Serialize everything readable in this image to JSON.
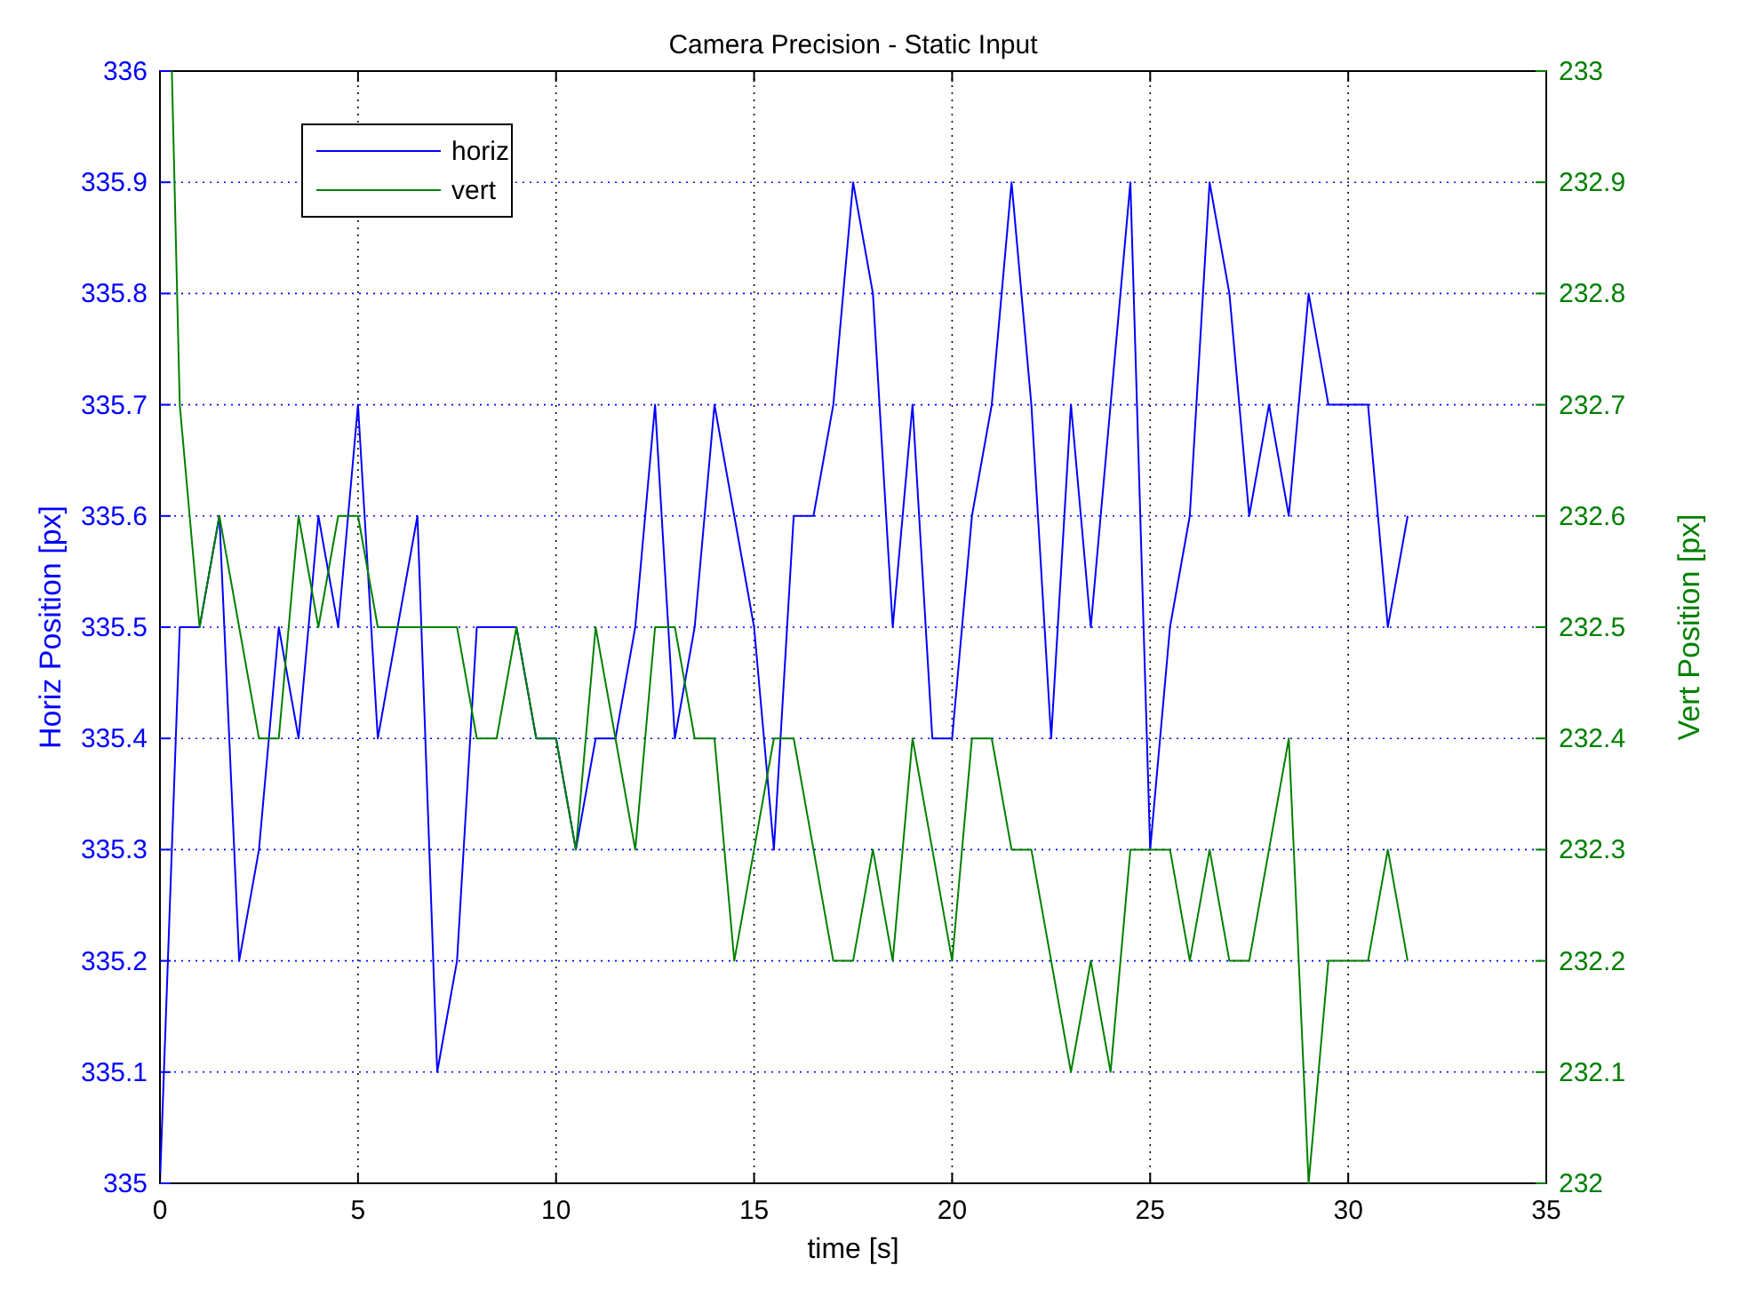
{
  "chart_data": {
    "type": "line",
    "title": "Camera Precision - Static Input",
    "xlabel": "time [s]",
    "ylabel": "Horiz Position [px]",
    "y2label": "Vert Position [px]",
    "x": [
      0,
      0.5,
      1,
      1.5,
      2,
      2.5,
      3,
      3.5,
      4,
      4.5,
      5,
      5.5,
      6,
      6.5,
      7,
      7.5,
      8,
      8.5,
      9,
      9.5,
      10,
      10.5,
      11,
      11.5,
      12,
      12.5,
      13,
      13.5,
      14,
      14.5,
      15,
      15.5,
      16,
      16.5,
      17,
      17.5,
      18,
      18.5,
      19,
      19.5,
      20,
      20.5,
      21,
      21.5,
      22,
      22.5,
      23,
      23.5,
      24,
      24.5,
      25,
      25.5,
      26,
      26.5,
      27,
      27.5,
      28,
      28.5,
      29,
      29.5,
      30,
      30.5,
      31,
      31.5
    ],
    "series": [
      {
        "name": "horiz",
        "color": "#0000ff",
        "values": [
          335.0,
          335.5,
          335.5,
          335.6,
          335.2,
          335.3,
          335.5,
          335.4,
          335.6,
          335.5,
          335.7,
          335.4,
          335.5,
          335.6,
          335.1,
          335.2,
          335.5,
          335.5,
          335.5,
          335.4,
          335.4,
          335.3,
          335.4,
          335.4,
          335.5,
          335.7,
          335.4,
          335.5,
          335.7,
          335.6,
          335.5,
          335.3,
          335.6,
          335.6,
          335.7,
          335.9,
          335.8,
          335.5,
          335.7,
          335.4,
          335.4,
          335.6,
          335.7,
          335.9,
          335.7,
          335.4,
          335.7,
          335.5,
          335.7,
          335.9,
          335.3,
          335.5,
          335.6,
          335.9,
          335.8,
          335.6,
          335.7,
          335.6,
          335.8,
          335.7,
          335.7,
          335.7,
          335.5,
          335.6
        ]
      },
      {
        "name": "vert",
        "color": "#008000",
        "axis": "y2",
        "x": [
          0.3,
          0.5,
          1,
          1.5,
          2,
          2.5,
          3,
          3.5,
          4,
          4.5,
          5,
          5.5,
          6,
          6.5,
          7,
          7.5,
          8,
          8.5,
          9,
          9.5,
          10,
          10.5,
          11,
          11.5,
          12,
          12.5,
          13,
          13.5,
          14,
          14.5,
          15,
          15.5,
          16,
          16.5,
          17,
          17.5,
          18,
          18.5,
          19,
          19.5,
          20,
          20.5,
          21,
          21.5,
          22,
          22.5,
          23,
          23.5,
          24,
          24.5,
          25,
          25.5,
          26,
          26.5,
          27,
          27.5,
          28,
          28.5,
          29,
          29.5,
          30,
          30.5,
          31,
          31.5
        ],
        "values": [
          233.0,
          232.7,
          232.5,
          232.6,
          232.5,
          232.4,
          232.4,
          232.6,
          232.5,
          232.6,
          232.6,
          232.5,
          232.5,
          232.5,
          232.5,
          232.5,
          232.4,
          232.4,
          232.5,
          232.4,
          232.4,
          232.3,
          232.5,
          232.4,
          232.3,
          232.5,
          232.5,
          232.4,
          232.4,
          232.2,
          232.3,
          232.4,
          232.4,
          232.3,
          232.2,
          232.2,
          232.3,
          232.2,
          232.4,
          232.3,
          232.2,
          232.4,
          232.4,
          232.3,
          232.3,
          232.2,
          232.1,
          232.2,
          232.1,
          232.3,
          232.3,
          232.3,
          232.2,
          232.3,
          232.2,
          232.2,
          232.3,
          232.4,
          232.0,
          232.2,
          232.2,
          232.2,
          232.3,
          232.2
        ]
      }
    ],
    "xlim": [
      0,
      35
    ],
    "xticks": [
      0,
      5,
      10,
      15,
      20,
      25,
      30,
      35
    ],
    "ylim": [
      335,
      336
    ],
    "yticks": [
      335,
      335.1,
      335.2,
      335.3,
      335.4,
      335.5,
      335.6,
      335.7,
      335.8,
      335.9,
      336
    ],
    "y2lim": [
      232,
      233
    ],
    "y2ticks": [
      232,
      232.1,
      232.2,
      232.3,
      232.4,
      232.5,
      232.6,
      232.7,
      232.8,
      232.9,
      233
    ],
    "grid": true,
    "legend": "top left",
    "line_style": "solid",
    "marker": "none"
  }
}
